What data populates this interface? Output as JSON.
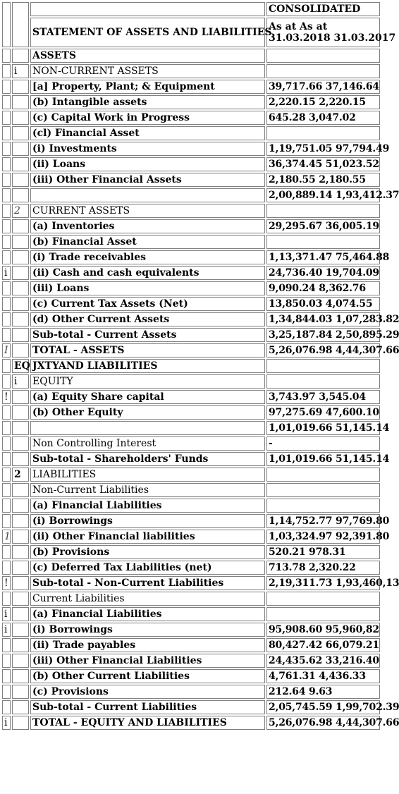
{
  "header": {
    "consolidated": "CONSOLIDATED",
    "statement_title": "STATEMENT OF ASSETS AND LIABILITIES",
    "as_at_line": "As at As at",
    "dates_line": "31.03.2018 31.03.2017"
  },
  "rows": [
    {
      "m": "",
      "n": "",
      "label": "ASSETS",
      "value": ""
    },
    {
      "m": "",
      "n": "i",
      "label": "NON-CURRENT ASSETS",
      "value": ""
    },
    {
      "m": "",
      "n": "",
      "label": "[a] Property, Plant; & Equipment",
      "value": "39,717.66 37,146.64"
    },
    {
      "m": "",
      "n": "",
      "label": "(b) Intangible assets",
      "value": "2,220.15 2,220.15"
    },
    {
      "m": "",
      "n": "",
      "label": "(c) Capital Work in Progress",
      "value": "645.28 3,047.02"
    },
    {
      "m": "",
      "n": "",
      "label": "(cl) Financial Asset",
      "value": ""
    },
    {
      "m": "",
      "n": "",
      "label": "(i) Investments",
      "value": "1,19,751.05 97,794.49"
    },
    {
      "m": "",
      "n": "",
      "label": "(ii) Loans",
      "value": "36,374.45 51,023.52"
    },
    {
      "m": "",
      "n": "",
      "label": "(iii) Other Financial Assets",
      "value": "2,180.55 2,180.55"
    },
    {
      "m": "",
      "n": "",
      "label": "",
      "value": "2,00,889.14 1,93,412.37"
    },
    {
      "m": "",
      "n": "2",
      "label": "CURRENT ASSETS",
      "value": ""
    },
    {
      "m": "",
      "n": "",
      "label": "(a) Inventories",
      "value": "29,295.67 36,005.19"
    },
    {
      "m": "",
      "n": "",
      "label": "(b) Financial Asset",
      "value": ""
    },
    {
      "m": "",
      "n": "",
      "label": "(i) Trade receivables",
      "value": "1,13,371.47 75,464.88"
    },
    {
      "m": "i",
      "n": "",
      "label": "(ii) Cash and cash equivalents",
      "value": "24,736.40 19,704.09"
    },
    {
      "m": "",
      "n": "",
      "label": "(iii) Loans",
      "value": "9,090.24 8,362.76"
    },
    {
      "m": "",
      "n": "",
      "label": "(c) Current Tax Assets (Net)",
      "value": "13,850.03 4,074.55"
    },
    {
      "m": "",
      "n": "",
      "label": "(d) Other Current Assets",
      "value": "1,34,844.03 1,07,283.82"
    },
    {
      "m": "",
      "n": "",
      "label": "Sub-total - Current Assets",
      "value": "3,25,187.84 2,50,895.29"
    },
    {
      "m": "I",
      "n": "",
      "label": "TOTAL - ASSETS",
      "value": "5,26,076.98 4,44,307.66"
    },
    {
      "m": "",
      "n": "EQ",
      "label": "JXTYAND LIABILITIES",
      "value": ""
    },
    {
      "m": "",
      "n": "i",
      "label": "EQUITY",
      "value": ""
    },
    {
      "m": "!",
      "n": "",
      "label": "(a) Equity Share capital",
      "value": "3,743.97 3,545.04"
    },
    {
      "m": "",
      "n": "",
      "label": "(b) Other Equity",
      "value": "97,275.69 47,600.10"
    },
    {
      "m": "",
      "n": "",
      "label": "",
      "value": "1,01,019.66 51,145.14"
    },
    {
      "m": "",
      "n": "",
      "label": "Non Controlling Interest",
      "value": "-"
    },
    {
      "m": "",
      "n": "",
      "label": "Sub-total - Shareholders' Funds",
      "value": "1,01,019.66 51,145.14"
    },
    {
      "m": "",
      "n": "2",
      "label": "LIABILITIES",
      "value": ""
    },
    {
      "m": "",
      "n": "",
      "label": "Non-Current Liabilities",
      "value": ""
    },
    {
      "m": "",
      "n": "",
      "label": "(a) Financial Liabilities",
      "value": ""
    },
    {
      "m": "",
      "n": "",
      "label": "(i) Borrowings",
      "value": "1,14,752.77 97,769.80"
    },
    {
      "m": "1",
      "n": "",
      "label": "(ii) Other Financial liabilities",
      "value": "1,03,324.97 92,391.80"
    },
    {
      "m": "",
      "n": "",
      "label": "(b) Provisions",
      "value": "520.21 978.31"
    },
    {
      "m": "",
      "n": "",
      "label": "(c) Deferred Tax Liabilities (net)",
      "value": "713.78 2,320.22"
    },
    {
      "m": "!",
      "n": "",
      "label": "Sub-total - Non-Current Liabilities",
      "value": "2,19,311.73 1,93,460,13"
    },
    {
      "m": "",
      "n": "",
      "label": "Current Liabilities",
      "value": ""
    },
    {
      "m": "i",
      "n": "",
      "label": "(a) Financial Liabilities",
      "value": ""
    },
    {
      "m": "i",
      "n": "",
      "label": "(i) Borrowings",
      "value": "95,908.60 95,960,82"
    },
    {
      "m": "",
      "n": "",
      "label": "(ii) Trade payables",
      "value": "80,427.42 66,079.21"
    },
    {
      "m": "",
      "n": "",
      "label": "(iii) Other Financial Liabilities",
      "value": "24,435.62 33,216.40"
    },
    {
      "m": "",
      "n": "",
      "label": "(b) Other Current Liabilities",
      "value": "4,761.31 4,436.33"
    },
    {
      "m": "",
      "n": "",
      "label": "(c) Provisions",
      "value": "212.64 9.63"
    },
    {
      "m": "",
      "n": "",
      "label": "Sub-total - Current Liabilities",
      "value": "2,05,745.59 1,99,702.39"
    },
    {
      "m": "i",
      "n": "",
      "label": "TOTAL - EQUITY AND LIABILITIES",
      "value": "5,26,076.98 4,44,307.66"
    }
  ]
}
